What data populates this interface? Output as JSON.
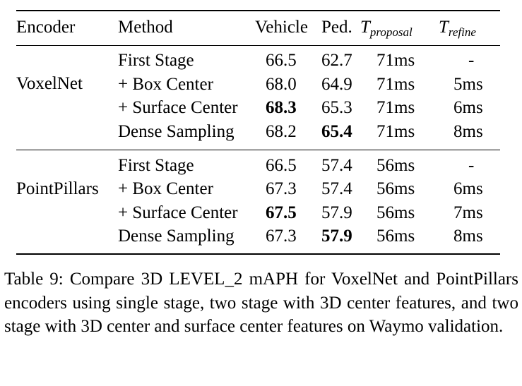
{
  "table": {
    "headers": {
      "encoder": "Encoder",
      "method": "Method",
      "vehicle": "Vehicle",
      "ped": "Ped.",
      "t_proposal": {
        "symbol": "T",
        "sub": "proposal"
      },
      "t_refine": {
        "symbol": "T",
        "sub": "refine"
      }
    },
    "groups": [
      {
        "encoder": "VoxelNet",
        "rows": [
          {
            "method": "First Stage",
            "vehicle": "66.5",
            "ped": "62.7",
            "t_proposal": "71ms",
            "t_refine": "-"
          },
          {
            "method": "+ Box Center",
            "vehicle": "68.0",
            "ped": "64.9",
            "t_proposal": "71ms",
            "t_refine": "5ms"
          },
          {
            "method": "+ Surface Center",
            "vehicle": "68.3",
            "ped": "65.3",
            "t_proposal": "71ms",
            "t_refine": "6ms"
          },
          {
            "method": "Dense Sampling",
            "vehicle": "68.2",
            "ped": "65.4",
            "t_proposal": "71ms",
            "t_refine": "8ms"
          }
        ]
      },
      {
        "encoder": "PointPillars",
        "rows": [
          {
            "method": "First Stage",
            "vehicle": "66.5",
            "ped": "57.4",
            "t_proposal": "56ms",
            "t_refine": "-"
          },
          {
            "method": "+ Box Center",
            "vehicle": "67.3",
            "ped": "57.4",
            "t_proposal": "56ms",
            "t_refine": "6ms"
          },
          {
            "method": "+ Surface Center",
            "vehicle": "67.5",
            "ped": "57.9",
            "t_proposal": "56ms",
            "t_refine": "7ms"
          },
          {
            "method": "Dense Sampling",
            "vehicle": "67.3",
            "ped": "57.9",
            "t_proposal": "56ms",
            "t_refine": "8ms"
          }
        ]
      }
    ]
  },
  "caption": "Table 9: Compare 3D LEVEL_2 mAPH for VoxelNet and PointPillars encoders using single stage, two stage with 3D center features, and two stage with 3D center and surface center features on Waymo validation."
}
